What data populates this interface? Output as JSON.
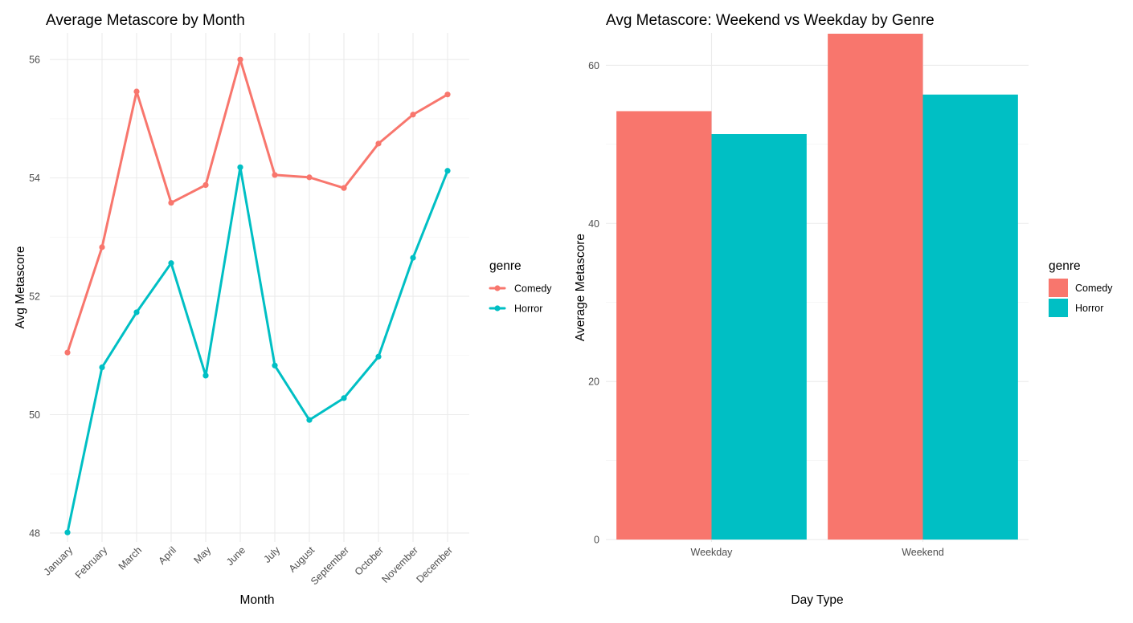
{
  "chart_data": [
    {
      "type": "line",
      "title": "Average Metascore by Month",
      "xlabel": "Month",
      "ylabel": "Avg Metascore",
      "categories": [
        "January",
        "February",
        "March",
        "April",
        "May",
        "June",
        "July",
        "August",
        "September",
        "October",
        "November",
        "December"
      ],
      "series": [
        {
          "name": "Comedy",
          "color": "#F8766D",
          "values": [
            51.05,
            52.83,
            55.46,
            53.58,
            53.88,
            56.0,
            54.05,
            54.01,
            53.83,
            54.58,
            55.07,
            55.41
          ]
        },
        {
          "name": "Horror",
          "color": "#00BFC4",
          "values": [
            48.01,
            50.8,
            51.73,
            52.56,
            50.66,
            54.18,
            50.83,
            49.91,
            50.28,
            50.98,
            52.65,
            54.12
          ]
        }
      ],
      "ylim": [
        47.85,
        56.45
      ],
      "yticks": [
        48,
        50,
        52,
        54,
        56
      ],
      "ytick_labels": [
        "48",
        "50",
        "52",
        "54",
        "56"
      ],
      "grid": true,
      "legend": {
        "title": "genre",
        "position": "right"
      }
    },
    {
      "type": "bar",
      "title": "Avg Metascore: Weekend vs Weekday by Genre",
      "xlabel": "Day Type",
      "ylabel": "Average Metascore",
      "categories": [
        "Weekday",
        "Weekend"
      ],
      "series": [
        {
          "name": "Comedy",
          "color": "#F8766D",
          "values": [
            54.2,
            64.0
          ]
        },
        {
          "name": "Horror",
          "color": "#00BFC4",
          "values": [
            51.3,
            56.3
          ]
        }
      ],
      "ylim": [
        -0.3,
        64.1
      ],
      "yticks": [
        0,
        20,
        40,
        60
      ],
      "ytick_labels": [
        "0",
        "20",
        "40",
        "60"
      ],
      "grid": true,
      "legend": {
        "title": "genre",
        "position": "right"
      }
    }
  ]
}
